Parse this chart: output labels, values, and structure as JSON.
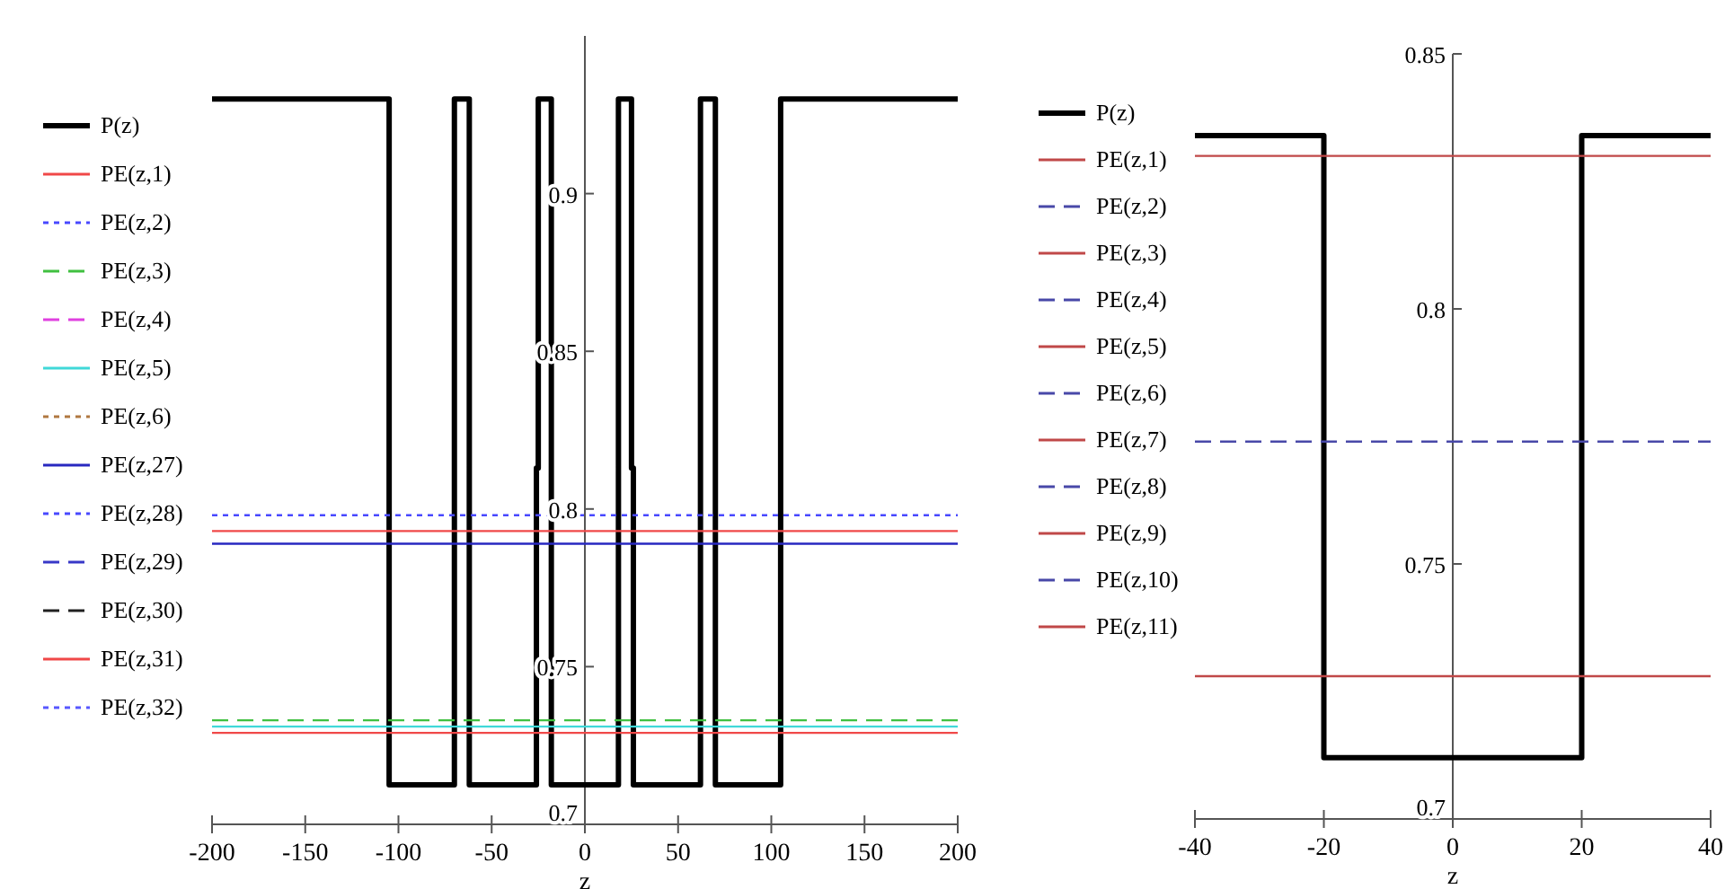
{
  "chart_data": [
    {
      "type": "line",
      "xlabel": "z",
      "xlim": [
        -200,
        200
      ],
      "ylim": [
        0.7,
        0.95
      ],
      "xticks": [
        -200,
        -150,
        -100,
        -50,
        0,
        50,
        100,
        150,
        200
      ],
      "yticks": [
        0.7,
        0.75,
        0.8,
        0.85,
        0.9
      ],
      "legend": "left",
      "grid": false,
      "series": [
        {
          "name": "P(z)",
          "color": "#000000",
          "line_style": "solid",
          "x": [
            -200,
            -105,
            -105,
            -70,
            -70,
            -62,
            -62,
            -26,
            -26,
            -25,
            -25,
            -18,
            -18,
            18,
            18,
            25,
            25,
            26,
            26,
            62,
            62,
            70,
            70,
            105,
            105,
            200
          ],
          "values": [
            0.93,
            0.93,
            0.7125,
            0.7125,
            0.93,
            0.93,
            0.7125,
            0.7125,
            0.813,
            0.813,
            0.93,
            0.93,
            0.7125,
            0.7125,
            0.93,
            0.93,
            0.813,
            0.813,
            0.7125,
            0.7125,
            0.93,
            0.93,
            0.7125,
            0.7125,
            0.93,
            0.93
          ]
        },
        {
          "name": "PE(z,1)",
          "color": "#f04848",
          "line_style": "solid",
          "x": [
            -200,
            200
          ],
          "values": [
            0.729,
            0.729
          ]
        },
        {
          "name": "PE(z,2)",
          "color": "#4848ff",
          "line_style": "dotted"
        },
        {
          "name": "PE(z,3)",
          "color": "#40c040",
          "line_style": "dashed",
          "x": [
            -200,
            200
          ],
          "values": [
            0.733,
            0.733
          ]
        },
        {
          "name": "PE(z,4)",
          "color": "#e040e0",
          "line_style": "dashed"
        },
        {
          "name": "PE(z,5)",
          "color": "#40d8d8",
          "line_style": "solid",
          "x": [
            -200,
            200
          ],
          "values": [
            0.731,
            0.731
          ]
        },
        {
          "name": "PE(z,6)",
          "color": "#b07840",
          "line_style": "dotted"
        },
        {
          "name": "PE(z,27)",
          "color": "#2828c0",
          "line_style": "solid",
          "x": [
            -200,
            200
          ],
          "values": [
            0.789,
            0.789
          ]
        },
        {
          "name": "PE(z,28)",
          "color": "#4848ff",
          "line_style": "dotted",
          "x": [
            -200,
            200
          ],
          "values": [
            0.798,
            0.798
          ]
        },
        {
          "name": "PE(z,29)",
          "color": "#3838c8",
          "line_style": "dashed"
        },
        {
          "name": "PE(z,30)",
          "color": "#202020",
          "line_style": "dashed"
        },
        {
          "name": "PE(z,31)",
          "color": "#f04848",
          "line_style": "solid",
          "x": [
            -200,
            200
          ],
          "values": [
            0.793,
            0.793
          ]
        },
        {
          "name": "PE(z,32)",
          "color": "#5858ff",
          "line_style": "dotted"
        }
      ]
    },
    {
      "type": "line",
      "xlabel": "z",
      "xlim": [
        -40,
        40
      ],
      "ylim": [
        0.7,
        0.85
      ],
      "xticks": [
        -40,
        -20,
        0,
        20,
        40
      ],
      "yticks": [
        0.7,
        0.75,
        0.8,
        0.85
      ],
      "legend": "left",
      "grid": false,
      "series": [
        {
          "name": "P(z)",
          "color": "#000000",
          "line_style": "solid",
          "x": [
            -40,
            -20,
            -20,
            20,
            20,
            40
          ],
          "values": [
            0.834,
            0.834,
            0.712,
            0.712,
            0.834,
            0.834
          ]
        },
        {
          "name": "PE(z,1)",
          "color": "#c04848",
          "line_style": "solid",
          "x": [
            -40,
            40
          ],
          "values": [
            0.83,
            0.83
          ]
        },
        {
          "name": "PE(z,2)",
          "color": "#4848a8",
          "line_style": "dashed",
          "x": [
            -40,
            40
          ],
          "values": [
            0.774,
            0.774
          ]
        },
        {
          "name": "PE(z,3)",
          "color": "#c04848",
          "line_style": "solid",
          "x": [
            -40,
            40
          ],
          "values": [
            0.728,
            0.728
          ]
        },
        {
          "name": "PE(z,4)",
          "color": "#4848a8",
          "line_style": "dashed"
        },
        {
          "name": "PE(z,5)",
          "color": "#c04848",
          "line_style": "solid"
        },
        {
          "name": "PE(z,6)",
          "color": "#4848a8",
          "line_style": "dashed"
        },
        {
          "name": "PE(z,7)",
          "color": "#c04848",
          "line_style": "solid"
        },
        {
          "name": "PE(z,8)",
          "color": "#4848a8",
          "line_style": "dashed"
        },
        {
          "name": "PE(z,9)",
          "color": "#c04848",
          "line_style": "solid"
        },
        {
          "name": "PE(z,10)",
          "color": "#4848a8",
          "line_style": "dashed"
        },
        {
          "name": "PE(z,11)",
          "color": "#c04848",
          "line_style": "solid"
        }
      ]
    }
  ]
}
